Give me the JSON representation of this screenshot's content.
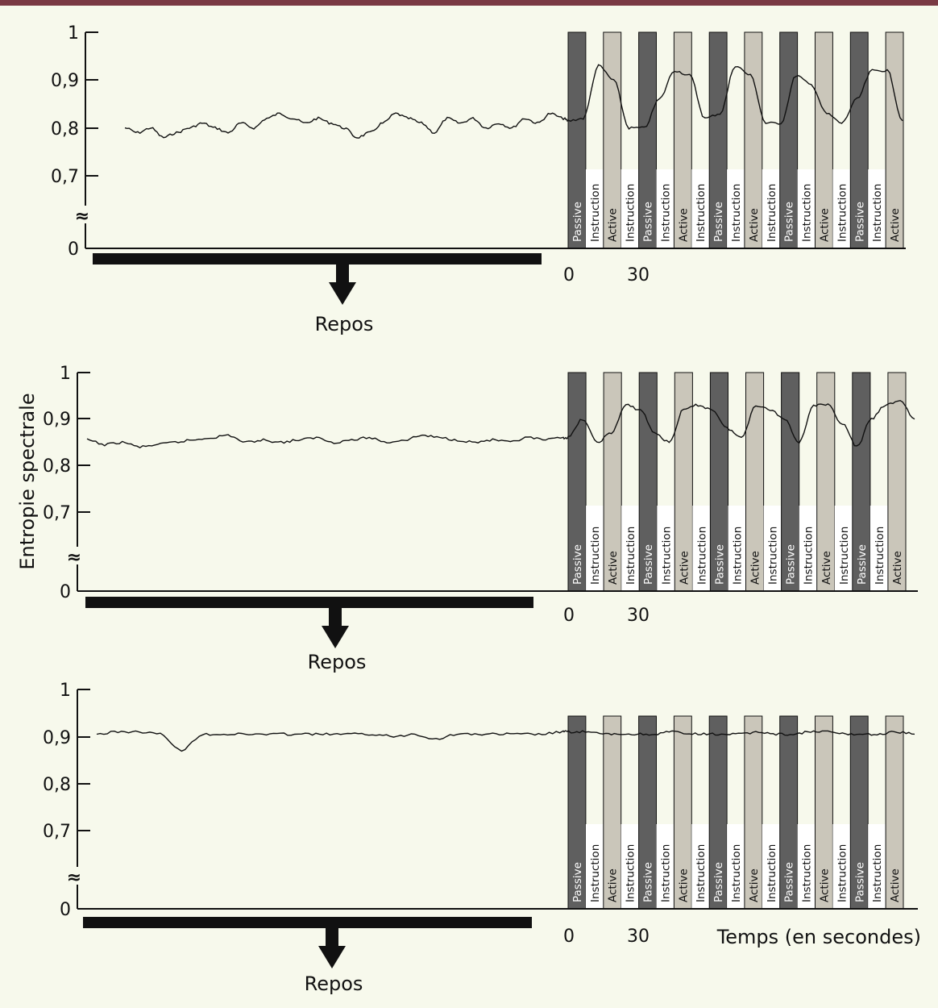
{
  "colors": {
    "background": "#f7f9ec",
    "top_rule": "#7a3a44",
    "passive_block": "#5f5f5f",
    "active_block": "#cac6ba",
    "instruction_block": "#ffffff",
    "line": "#111111"
  },
  "y_axis_label": "Entropie spectrale",
  "x_axis_label": "Temps (en secondes)",
  "rest_label": "Repos",
  "chart_data": [
    {
      "type": "line",
      "panel": "top",
      "ylim": [
        0,
        1
      ],
      "y_ticks": [
        "1",
        "0,9",
        "0,8",
        "0,7",
        "0"
      ],
      "axis_break": true,
      "x_ticks": [
        "0",
        "30"
      ],
      "rest_label": "Repos",
      "segments": [
        "Passive",
        "Instruction",
        "Active",
        "Instruction",
        "Passive",
        "Instruction",
        "Active",
        "Instruction",
        "Passive",
        "Instruction",
        "Active",
        "Instruction",
        "Passive",
        "Instruction",
        "Active",
        "Instruction",
        "Passive",
        "Instruction",
        "Active"
      ],
      "rest_series": [
        0.8,
        0.79,
        0.8,
        0.78,
        0.79,
        0.8,
        0.81,
        0.8,
        0.79,
        0.81,
        0.8,
        0.82,
        0.83,
        0.82,
        0.81,
        0.82,
        0.81,
        0.8,
        0.78,
        0.79,
        0.81,
        0.83,
        0.82,
        0.81,
        0.79,
        0.82,
        0.81,
        0.82,
        0.8,
        0.81,
        0.8,
        0.82,
        0.81,
        0.83,
        0.82
      ],
      "task_series": [
        0.815,
        0.82,
        0.93,
        0.9,
        0.8,
        0.8,
        0.86,
        0.92,
        0.91,
        0.82,
        0.83,
        0.93,
        0.91,
        0.81,
        0.81,
        0.91,
        0.89,
        0.83,
        0.81,
        0.86,
        0.92,
        0.92,
        0.815
      ]
    },
    {
      "type": "line",
      "panel": "middle",
      "ylim": [
        0,
        1
      ],
      "y_ticks": [
        "1",
        "0,9",
        "0,8",
        "0,7",
        "0"
      ],
      "axis_break": true,
      "x_ticks": [
        "0",
        "30"
      ],
      "rest_label": "Repos",
      "segments": [
        "Passive",
        "Instruction",
        "Active",
        "Instruction",
        "Passive",
        "Instruction",
        "Active",
        "Instruction",
        "Passive",
        "Instruction",
        "Active",
        "Instruction",
        "Passive",
        "Instruction",
        "Active",
        "Instruction",
        "Passive",
        "Instruction",
        "Active"
      ],
      "rest_series": [
        0.855,
        0.845,
        0.85,
        0.84,
        0.845,
        0.85,
        0.855,
        0.86,
        0.865,
        0.85,
        0.855,
        0.85,
        0.855,
        0.86,
        0.85,
        0.855,
        0.86,
        0.85,
        0.855,
        0.865,
        0.86,
        0.855,
        0.85,
        0.855,
        0.85,
        0.86,
        0.855,
        0.86
      ],
      "task_series": [
        0.86,
        0.9,
        0.85,
        0.87,
        0.93,
        0.92,
        0.87,
        0.85,
        0.92,
        0.93,
        0.92,
        0.88,
        0.86,
        0.93,
        0.92,
        0.9,
        0.85,
        0.93,
        0.93,
        0.89,
        0.84,
        0.9,
        0.93,
        0.94,
        0.9
      ]
    },
    {
      "type": "line",
      "panel": "bottom",
      "ylim": [
        0,
        1
      ],
      "y_ticks": [
        "1",
        "0,9",
        "0,8",
        "0,7",
        "0"
      ],
      "axis_break": true,
      "x_ticks": [
        "0",
        "30"
      ],
      "rest_label": "Repos",
      "segments": [
        "Passive",
        "Instruction",
        "Active",
        "Instruction",
        "Passive",
        "Instruction",
        "Active",
        "Instruction",
        "Passive",
        "Instruction",
        "Active",
        "Instruction",
        "Passive",
        "Instruction",
        "Active",
        "Instruction",
        "Passive",
        "Instruction",
        "Active"
      ],
      "rest_series": [
        0.905,
        0.91,
        0.91,
        0.905,
        0.87,
        0.905,
        0.905,
        0.905,
        0.905,
        0.905,
        0.905,
        0.905,
        0.905,
        0.905,
        0.9,
        0.905,
        0.895,
        0.905,
        0.905,
        0.905,
        0.905,
        0.905,
        0.91
      ],
      "task_series": [
        0.91,
        0.91,
        0.905,
        0.905,
        0.905,
        0.905,
        0.91,
        0.905,
        0.905,
        0.905,
        0.905,
        0.91,
        0.905,
        0.905,
        0.91,
        0.91,
        0.905,
        0.905,
        0.905,
        0.91,
        0.905
      ]
    }
  ]
}
